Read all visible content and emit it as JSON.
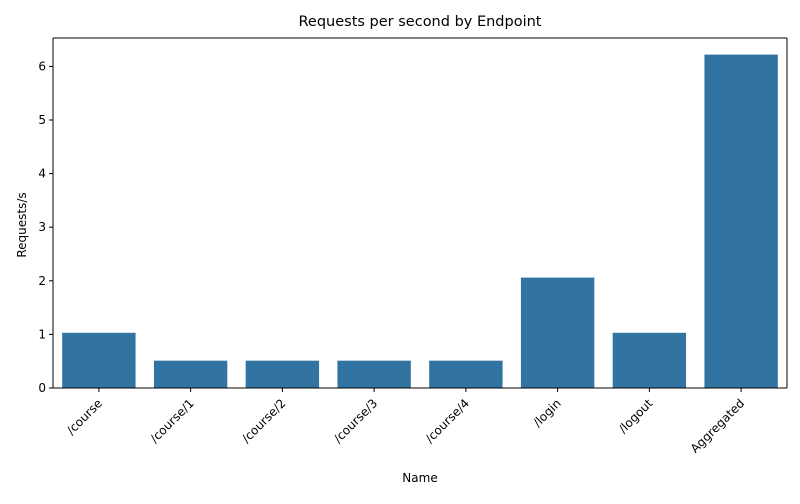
{
  "chart_data": {
    "type": "bar",
    "title": "Requests per second by Endpoint",
    "xlabel": "Name",
    "ylabel": "Requests/s",
    "categories": [
      "/course",
      "/course/1",
      "/course/2",
      "/course/3",
      "/course/4",
      "/login",
      "/logout",
      "Aggregated"
    ],
    "values": [
      1.03,
      0.51,
      0.51,
      0.51,
      0.51,
      2.06,
      1.03,
      6.22
    ],
    "ylim": [
      0,
      6.53
    ],
    "yticks": [
      0,
      1,
      2,
      3,
      4,
      5,
      6
    ],
    "grid": false,
    "bar_color": "#3274a1"
  }
}
